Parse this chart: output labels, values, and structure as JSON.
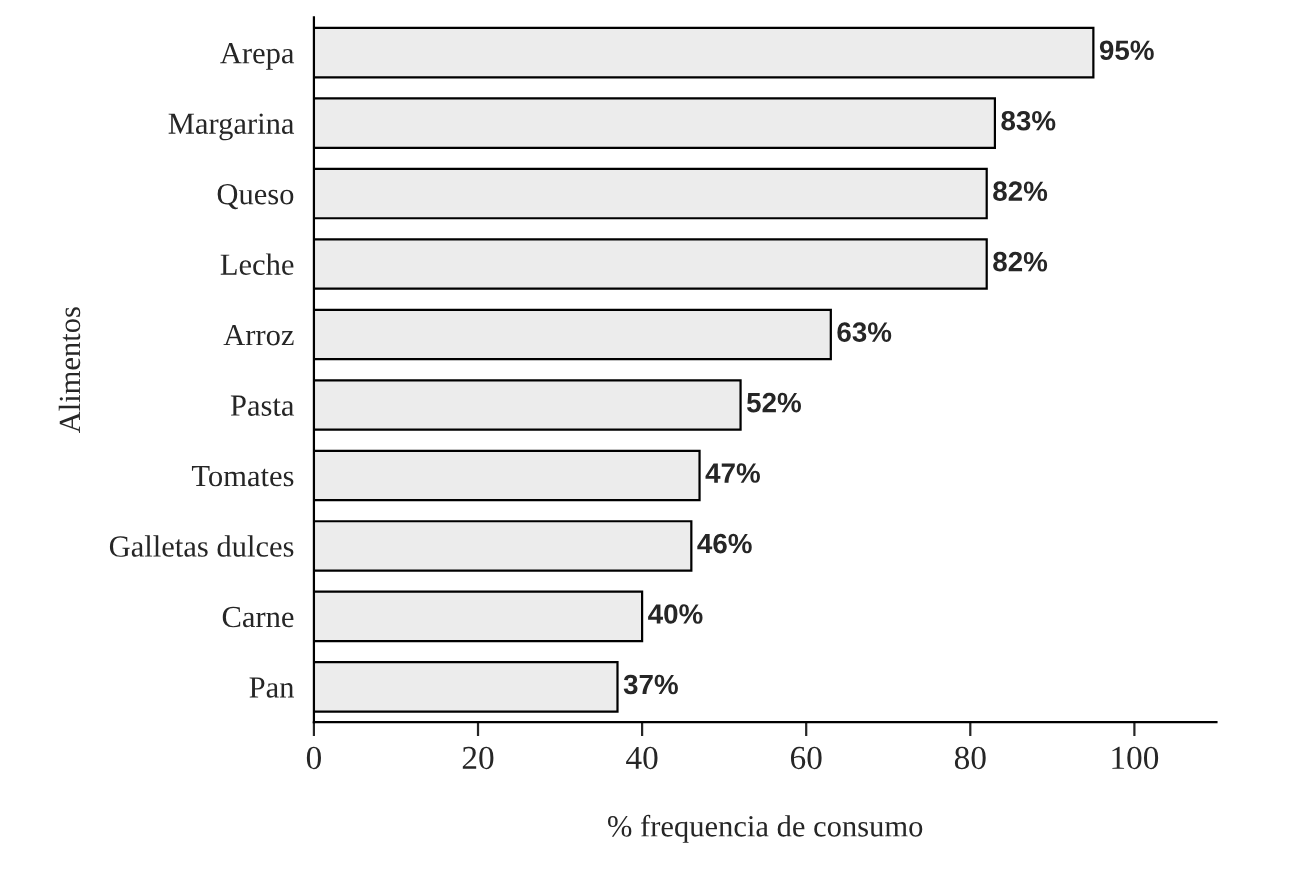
{
  "chart_data": {
    "type": "bar",
    "orientation": "horizontal",
    "xlabel": "% frequencia de consumo",
    "ylabel": "Alimentos",
    "categories": [
      "Arepa",
      "Margarina",
      "Queso",
      "Leche",
      "Arroz",
      "Pasta",
      "Tomates",
      "Galletas dulces",
      "Carne",
      "Pan"
    ],
    "values": [
      95,
      83,
      82,
      82,
      63,
      52,
      47,
      46,
      40,
      37
    ],
    "value_labels": [
      "95%",
      "83%",
      "82%",
      "82%",
      "63%",
      "52%",
      "47%",
      "46%",
      "40%",
      "37%"
    ],
    "color": "#ececec",
    "xlim": [
      0,
      110
    ],
    "xticks": [
      0,
      20,
      40,
      60,
      80,
      100
    ],
    "grid": false,
    "legend": false
  }
}
